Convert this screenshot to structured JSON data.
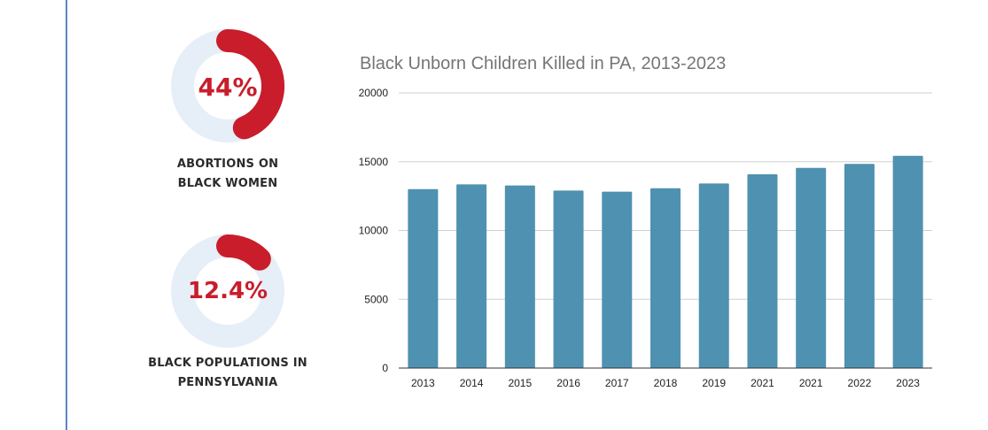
{
  "colors": {
    "accent": "#c91d2c",
    "track": "#e6eef7",
    "bar": "#4f91b0",
    "divider": "#5b86c0",
    "title": "#757575"
  },
  "stats": [
    {
      "value": "44%",
      "percent": 44,
      "label_lines": [
        "ABORTIONS ON",
        "BLACK WOMEN"
      ]
    },
    {
      "value": "12.4%",
      "percent": 12.4,
      "label_lines": [
        "BLACK POPULATIONS IN",
        "PENNSYLVANIA"
      ]
    }
  ],
  "chart_data": {
    "type": "bar",
    "title": "Black Unborn Children Killed in PA, 2013-2023",
    "xlabel": "",
    "ylabel": "",
    "categories": [
      "2013",
      "2014",
      "2015",
      "2016",
      "2017",
      "2018",
      "2019",
      "2021",
      "2021",
      "2022",
      "2023"
    ],
    "values": [
      13010,
      13350,
      13270,
      12900,
      12820,
      13070,
      13420,
      14080,
      14550,
      14840,
      15430
    ],
    "ylim": [
      0,
      20000
    ],
    "yticks": [
      "0",
      "5000",
      "10000",
      "15000",
      "20000"
    ],
    "grid": true,
    "legend": "none"
  }
}
